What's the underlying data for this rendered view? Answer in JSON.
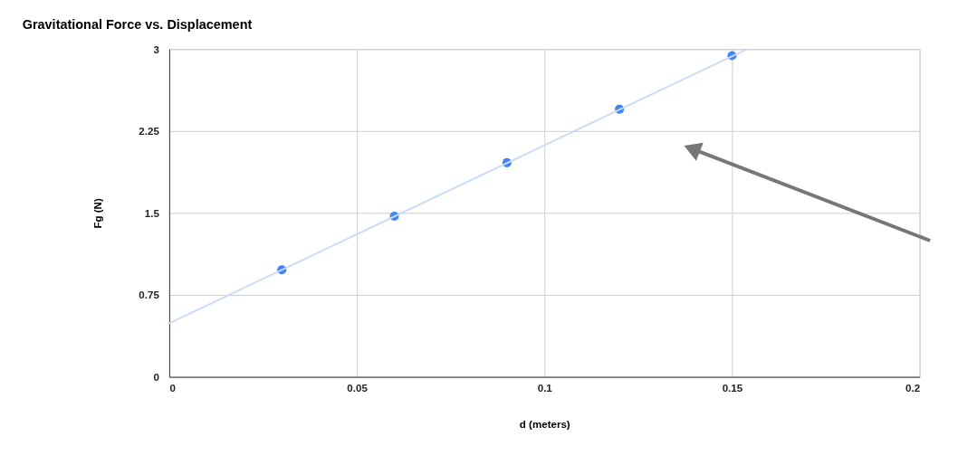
{
  "chart_data": {
    "type": "scatter",
    "title": "Gravitational Force vs. Displacement",
    "xlabel": "d (meters)",
    "ylabel": "Fg (N)",
    "series": [
      {
        "color": "#4285f4",
        "x": [
          0.03,
          0.06,
          0.09,
          0.12,
          0.15
        ],
        "values": [
          0.98,
          1.47,
          1.96,
          2.45,
          2.94
        ]
      },
      {
        "type": "line",
        "marker": "none",
        "color": "#c9dbf7",
        "x": [
          0,
          0.154
        ],
        "values": [
          0.49,
          3
        ]
      }
    ],
    "xlim": [
      0,
      0.2
    ],
    "xticks": [
      0,
      0.05,
      0.1,
      0.15,
      0.2
    ],
    "ylim": [
      0,
      3
    ],
    "yticks": [
      0,
      0.75,
      1.5,
      2.25,
      3
    ],
    "grid": true,
    "marker": "circle"
  }
}
